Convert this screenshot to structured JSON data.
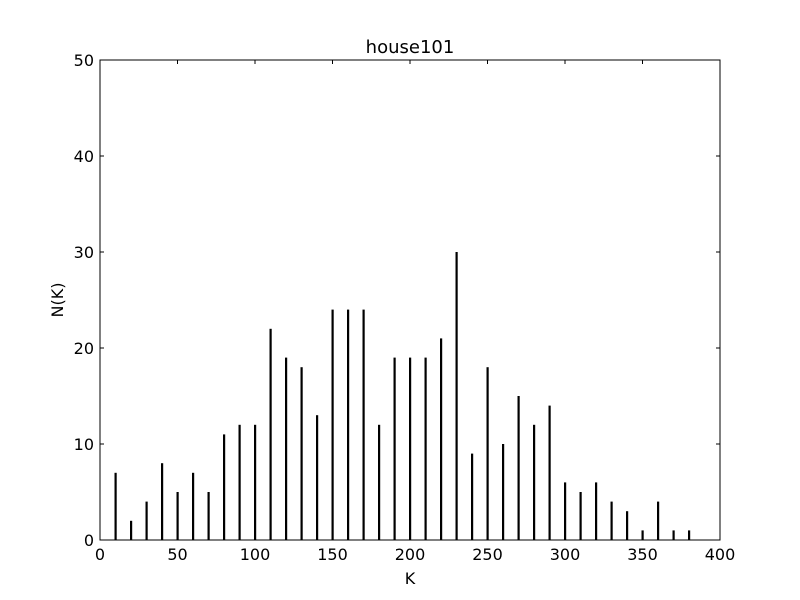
{
  "chart_data": {
    "type": "bar",
    "title": "house101",
    "xlabel": "K",
    "ylabel": "N(K)",
    "xlim": [
      0,
      400
    ],
    "ylim": [
      0,
      50
    ],
    "x_ticks": [
      0,
      50,
      100,
      150,
      200,
      250,
      300,
      350,
      400
    ],
    "y_ticks": [
      0,
      10,
      20,
      30,
      40,
      50
    ],
    "grid": false,
    "bar_color": "#000000",
    "points": [
      {
        "x": 10,
        "y": 7
      },
      {
        "x": 20,
        "y": 2
      },
      {
        "x": 30,
        "y": 4
      },
      {
        "x": 40,
        "y": 8
      },
      {
        "x": 50,
        "y": 5
      },
      {
        "x": 60,
        "y": 7
      },
      {
        "x": 70,
        "y": 5
      },
      {
        "x": 80,
        "y": 11
      },
      {
        "x": 90,
        "y": 12
      },
      {
        "x": 100,
        "y": 12
      },
      {
        "x": 110,
        "y": 22
      },
      {
        "x": 120,
        "y": 19
      },
      {
        "x": 130,
        "y": 18
      },
      {
        "x": 140,
        "y": 13
      },
      {
        "x": 150,
        "y": 24
      },
      {
        "x": 160,
        "y": 24
      },
      {
        "x": 170,
        "y": 24
      },
      {
        "x": 180,
        "y": 12
      },
      {
        "x": 190,
        "y": 19
      },
      {
        "x": 200,
        "y": 19
      },
      {
        "x": 210,
        "y": 19
      },
      {
        "x": 220,
        "y": 21
      },
      {
        "x": 230,
        "y": 30
      },
      {
        "x": 240,
        "y": 9
      },
      {
        "x": 250,
        "y": 18
      },
      {
        "x": 260,
        "y": 10
      },
      {
        "x": 270,
        "y": 15
      },
      {
        "x": 280,
        "y": 12
      },
      {
        "x": 290,
        "y": 14
      },
      {
        "x": 300,
        "y": 6
      },
      {
        "x": 310,
        "y": 5
      },
      {
        "x": 320,
        "y": 6
      },
      {
        "x": 330,
        "y": 4
      },
      {
        "x": 340,
        "y": 3
      },
      {
        "x": 350,
        "y": 1
      },
      {
        "x": 360,
        "y": 4
      },
      {
        "x": 370,
        "y": 1
      },
      {
        "x": 380,
        "y": 1
      }
    ]
  }
}
